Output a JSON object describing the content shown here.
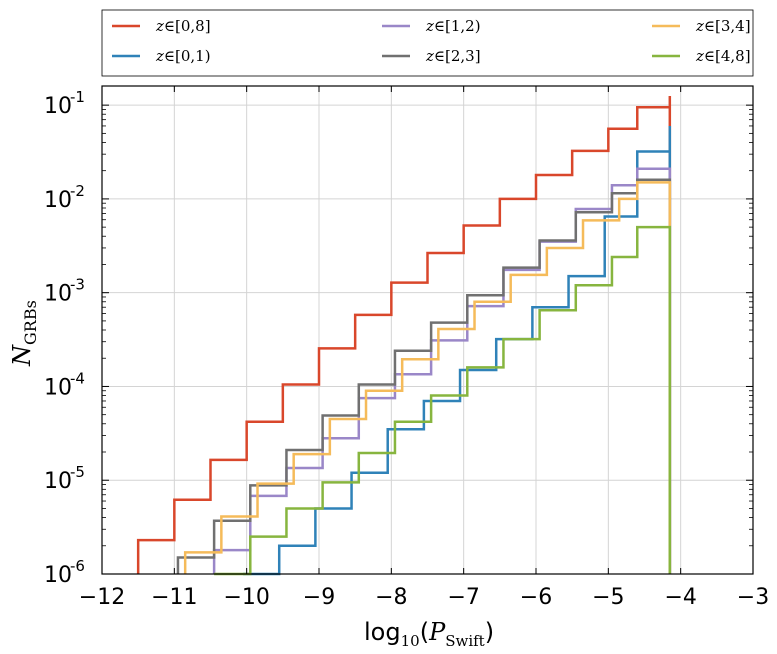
{
  "chart_data": {
    "type": "line",
    "drawstyle": "steps",
    "x_axis": {
      "label_main": "log",
      "label_base": "10",
      "label_var": "P",
      "label_var_sub": "Swift",
      "range": [
        -12,
        -3
      ],
      "ticks": [
        -12,
        -11,
        -10,
        -9,
        -8,
        -7,
        -6,
        -5,
        -4,
        -3
      ],
      "tick_labels": [
        "−12",
        "−11",
        "−10",
        "−9",
        "−8",
        "−7",
        "−6",
        "−5",
        "−4",
        "−3"
      ]
    },
    "y_axis": {
      "label_var": "N",
      "label_sub": "GRBs",
      "scale": "log",
      "range": [
        1e-06,
        0.16
      ],
      "ticks": [
        1e-06,
        1e-05,
        0.0001,
        0.001,
        0.01,
        0.1
      ],
      "tick_exponents": [
        "-6",
        "-5",
        "-4",
        "-3",
        "-2",
        "-1"
      ]
    },
    "grid": true,
    "legend_position": "top, outside, 3 columns",
    "series": [
      {
        "name": "z∈[0,8]",
        "color": "#d9472b",
        "steps": [
          [
            -11.5,
            2.3e-06
          ],
          [
            -11.0,
            6.2e-06
          ],
          [
            -10.5,
            1.65e-05
          ],
          [
            -10.0,
            4.2e-05
          ],
          [
            -9.5,
            0.000105
          ],
          [
            -9.0,
            0.000255
          ],
          [
            -8.5,
            0.00058
          ],
          [
            -8.0,
            0.00128
          ],
          [
            -7.5,
            0.00265
          ],
          [
            -7.0,
            0.0052
          ],
          [
            -6.5,
            0.01
          ],
          [
            -6.0,
            0.018
          ],
          [
            -5.5,
            0.0325
          ],
          [
            -5.0,
            0.056
          ],
          [
            -4.5,
            0.095
          ],
          [
            -4.5,
            0.125
          ]
        ],
        "edges": [
          -11.5,
          -11.0,
          -10.5,
          -10.0,
          -9.5,
          -9.0,
          -8.5,
          -8.0,
          -7.5,
          -7.0,
          -6.5,
          -6.0,
          -5.5,
          -5.0,
          -4.6,
          -4.15
        ],
        "values": [
          2.3e-06,
          6.2e-06,
          1.65e-05,
          4.2e-05,
          0.000105,
          0.000255,
          0.00058,
          0.00128,
          0.00265,
          0.0052,
          0.01,
          0.018,
          0.0325,
          0.056,
          0.095,
          0.125
        ]
      },
      {
        "name": "z∈[0,1)",
        "color": "#2f82b8",
        "edges": [
          -10.05,
          -9.55,
          -9.05,
          -8.55,
          -8.05,
          -7.55,
          -7.05,
          -6.55,
          -6.05,
          -5.55,
          -5.05,
          -4.6,
          -4.15
        ],
        "values": [
          1e-06,
          2e-06,
          5e-06,
          1.2e-05,
          3.5e-05,
          7e-05,
          0.00015,
          0.00032,
          0.0007,
          0.0015,
          0.0065,
          0.032,
          0.06
        ]
      },
      {
        "name": "z∈[1,2)",
        "color": "#9a87c8",
        "edges": [
          -10.45,
          -9.95,
          -9.45,
          -8.95,
          -8.45,
          -7.95,
          -7.45,
          -6.95,
          -6.45,
          -5.95,
          -5.45,
          -4.95,
          -4.6,
          -4.15
        ],
        "values": [
          1.8e-06,
          6.8e-06,
          1.35e-05,
          2.8e-05,
          7.5e-05,
          0.000135,
          0.00031,
          0.00072,
          0.00175,
          0.0035,
          0.0078,
          0.014,
          0.021,
          0.011
        ]
      },
      {
        "name": "z∈[2,3]",
        "color": "#707070",
        "edges": [
          -10.95,
          -10.45,
          -9.95,
          -9.45,
          -8.95,
          -8.45,
          -7.95,
          -7.45,
          -6.95,
          -6.45,
          -5.95,
          -5.45,
          -4.95,
          -4.6,
          -4.15
        ],
        "values": [
          1.5e-06,
          3.7e-06,
          8.8e-06,
          2.1e-05,
          4.9e-05,
          0.000105,
          0.00024,
          0.00048,
          0.00094,
          0.00185,
          0.0036,
          0.0072,
          0.0115,
          0.016,
          0.0165
        ]
      },
      {
        "name": "z∈[3,4]",
        "color": "#f5bb5a",
        "edges": [
          -10.85,
          -10.35,
          -9.85,
          -9.35,
          -8.85,
          -8.35,
          -7.85,
          -7.35,
          -6.85,
          -6.35,
          -5.85,
          -5.35,
          -4.85,
          -4.6,
          -4.15
        ],
        "values": [
          1.7e-06,
          4.1e-06,
          9.2e-06,
          1.9e-05,
          4.5e-05,
          9e-05,
          0.000195,
          0.00041,
          0.0008,
          0.00155,
          0.003,
          0.0059,
          0.01,
          0.015,
          0.0145
        ]
      },
      {
        "name": "z∈[4,8]",
        "color": "#87b53f",
        "edges": [
          -10.45,
          -9.95,
          -9.45,
          -8.95,
          -8.45,
          -7.95,
          -7.45,
          -6.95,
          -6.45,
          -5.95,
          -5.45,
          -4.95,
          -4.6,
          -4.15
        ],
        "values": [
          1e-06,
          2.5e-06,
          5e-06,
          9.5e-06,
          1.95e-05,
          4.2e-05,
          8e-05,
          0.00016,
          0.00032,
          0.00065,
          0.0012,
          0.0024,
          0.005,
          0.0048
        ]
      }
    ],
    "legend": [
      {
        "label": "z∈[0,8]",
        "series": 0
      },
      {
        "label": "z∈[1,2)",
        "series": 2
      },
      {
        "label": "z∈[3,4]",
        "series": 4
      },
      {
        "label": "z∈[0,1)",
        "series": 1
      },
      {
        "label": "z∈[2,3]",
        "series": 3
      },
      {
        "label": "z∈[4,8]",
        "series": 5
      }
    ]
  }
}
